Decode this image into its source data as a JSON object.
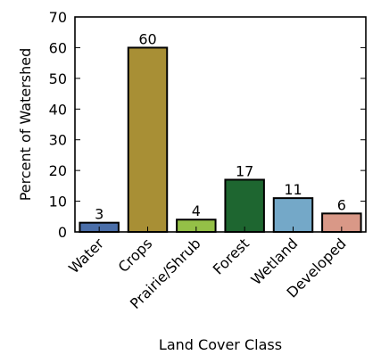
{
  "chart_data": {
    "type": "bar",
    "title": "",
    "xlabel": "Land Cover Class",
    "ylabel": "Percent of Watershed",
    "categories": [
      "Water",
      "Crops",
      "Prairie/Shrub",
      "Forest",
      "Wetland",
      "Developed"
    ],
    "values": [
      3,
      60,
      4,
      17,
      11,
      6
    ],
    "data_labels": [
      "3",
      "60",
      "4",
      "17",
      "11",
      "6"
    ],
    "colors": [
      "#4a6ea9",
      "#a88f35",
      "#94c047",
      "#1e6630",
      "#74a8c8",
      "#d99887"
    ],
    "ylim": [
      0,
      70
    ],
    "yticks": [
      0,
      10,
      20,
      30,
      40,
      50,
      60,
      70
    ],
    "grid": false,
    "legend": "none"
  }
}
